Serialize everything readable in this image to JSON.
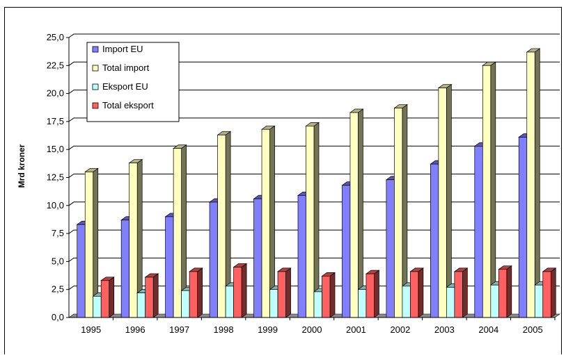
{
  "chart_data": {
    "type": "bar",
    "title": "",
    "xlabel": "",
    "ylabel": "Mrd kroner",
    "ylim": [
      0,
      25
    ],
    "y_ticks": [
      "0,0",
      "2,5",
      "5,0",
      "7,5",
      "10,0",
      "12,5",
      "15,0",
      "17,5",
      "20,0",
      "22,5",
      "25,0"
    ],
    "grid": true,
    "legend_position": "top-left",
    "categories": [
      "1995",
      "1996",
      "1997",
      "1998",
      "1999",
      "2000",
      "2001",
      "2002",
      "2003",
      "2004",
      "2005"
    ],
    "series": [
      {
        "name": "Import EU",
        "color": "#8080ff",
        "values": [
          8.3,
          8.7,
          9.0,
          10.3,
          10.6,
          10.9,
          11.8,
          12.3,
          13.7,
          15.3,
          16.1
        ]
      },
      {
        "name": "Total import",
        "color": "#ffffc0",
        "values": [
          13.0,
          13.8,
          15.1,
          16.3,
          16.8,
          17.1,
          18.3,
          18.7,
          20.5,
          22.5,
          23.7
        ]
      },
      {
        "name": "Eksport EU",
        "color": "#c0ffff",
        "values": [
          1.9,
          2.2,
          2.4,
          2.8,
          2.5,
          2.3,
          2.5,
          2.8,
          2.7,
          2.9,
          2.9
        ]
      },
      {
        "name": "Total eksport",
        "color": "#ff6060",
        "values": [
          3.3,
          3.6,
          4.1,
          4.5,
          4.1,
          3.7,
          3.9,
          4.1,
          4.1,
          4.3,
          4.1
        ]
      }
    ]
  }
}
